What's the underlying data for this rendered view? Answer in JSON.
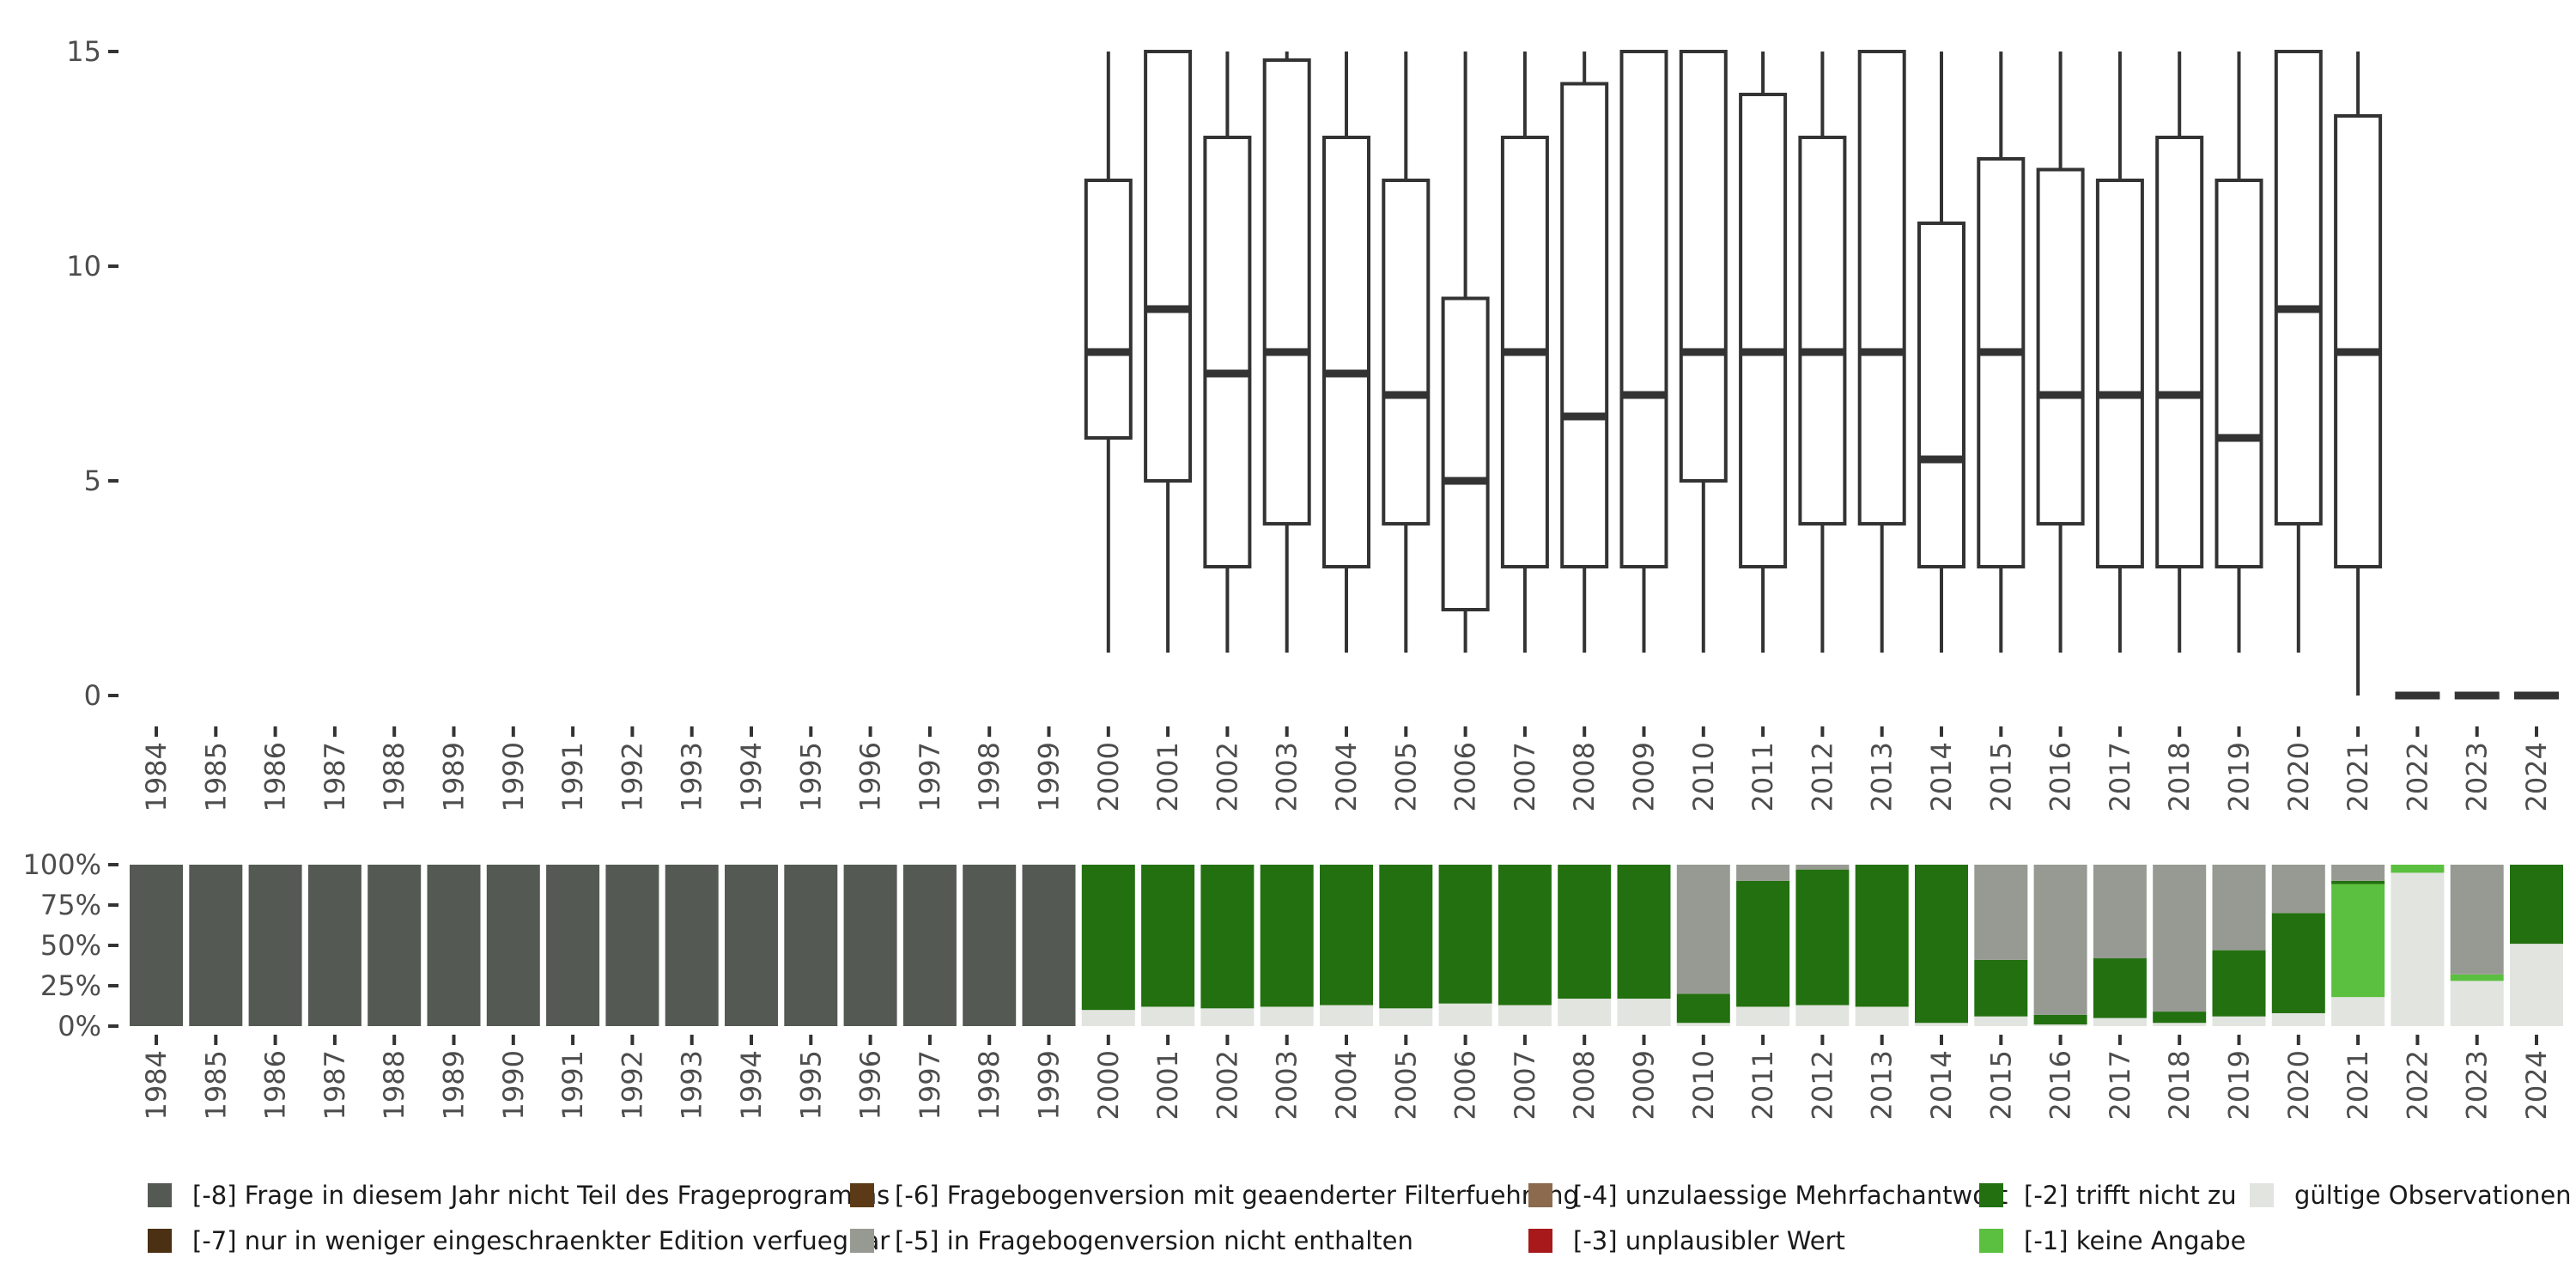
{
  "chart_data": [
    {
      "type": "boxplot",
      "title": "",
      "xlabel": "",
      "ylabel": "",
      "ylim": [
        0,
        15
      ],
      "yticks": [
        0,
        5,
        10,
        15
      ],
      "ytick_labels": [
        "0",
        "5",
        "10",
        "15"
      ],
      "categories": [
        "1984",
        "1985",
        "1986",
        "1987",
        "1988",
        "1989",
        "1990",
        "1991",
        "1992",
        "1993",
        "1994",
        "1995",
        "1996",
        "1997",
        "1998",
        "1999",
        "2000",
        "2001",
        "2002",
        "2003",
        "2004",
        "2005",
        "2006",
        "2007",
        "2008",
        "2009",
        "2010",
        "2011",
        "2012",
        "2013",
        "2014",
        "2015",
        "2016",
        "2017",
        "2018",
        "2019",
        "2020",
        "2021",
        "2022",
        "2023",
        "2024"
      ],
      "boxes": [
        {
          "year": "2000",
          "whisker_low": 1,
          "q1": 6,
          "median": 8,
          "q3": 12,
          "whisker_high": 15
        },
        {
          "year": "2001",
          "whisker_low": 1,
          "q1": 5,
          "median": 9,
          "q3": 15,
          "whisker_high": 15
        },
        {
          "year": "2002",
          "whisker_low": 1,
          "q1": 3,
          "median": 7.5,
          "q3": 13,
          "whisker_high": 15
        },
        {
          "year": "2003",
          "whisker_low": 1,
          "q1": 4,
          "median": 8,
          "q3": 14.8,
          "whisker_high": 15
        },
        {
          "year": "2004",
          "whisker_low": 1,
          "q1": 3,
          "median": 7.5,
          "q3": 13,
          "whisker_high": 15
        },
        {
          "year": "2005",
          "whisker_low": 1,
          "q1": 4,
          "median": 7,
          "q3": 12,
          "whisker_high": 15
        },
        {
          "year": "2006",
          "whisker_low": 1,
          "q1": 2,
          "median": 5,
          "q3": 9.25,
          "whisker_high": 15
        },
        {
          "year": "2007",
          "whisker_low": 1,
          "q1": 3,
          "median": 8,
          "q3": 13,
          "whisker_high": 15
        },
        {
          "year": "2008",
          "whisker_low": 1,
          "q1": 3,
          "median": 6.5,
          "q3": 14.25,
          "whisker_high": 15
        },
        {
          "year": "2009",
          "whisker_low": 1,
          "q1": 3,
          "median": 7,
          "q3": 15,
          "whisker_high": 15
        },
        {
          "year": "2010",
          "whisker_low": 1,
          "q1": 5,
          "median": 8,
          "q3": 15,
          "whisker_high": 15
        },
        {
          "year": "2011",
          "whisker_low": 1,
          "q1": 3,
          "median": 8,
          "q3": 14,
          "whisker_high": 15
        },
        {
          "year": "2012",
          "whisker_low": 1,
          "q1": 4,
          "median": 8,
          "q3": 13,
          "whisker_high": 15
        },
        {
          "year": "2013",
          "whisker_low": 1,
          "q1": 4,
          "median": 8,
          "q3": 15,
          "whisker_high": 15
        },
        {
          "year": "2014",
          "whisker_low": 1,
          "q1": 3,
          "median": 5.5,
          "q3": 11,
          "whisker_high": 15
        },
        {
          "year": "2015",
          "whisker_low": 1,
          "q1": 3,
          "median": 8,
          "q3": 12.5,
          "whisker_high": 15
        },
        {
          "year": "2016",
          "whisker_low": 1,
          "q1": 4,
          "median": 7,
          "q3": 12.25,
          "whisker_high": 15
        },
        {
          "year": "2017",
          "whisker_low": 1,
          "q1": 3,
          "median": 7,
          "q3": 12,
          "whisker_high": 15
        },
        {
          "year": "2018",
          "whisker_low": 1,
          "q1": 3,
          "median": 7,
          "q3": 13,
          "whisker_high": 15
        },
        {
          "year": "2019",
          "whisker_low": 1,
          "q1": 3,
          "median": 6,
          "q3": 12,
          "whisker_high": 15
        },
        {
          "year": "2020",
          "whisker_low": 1,
          "q1": 4,
          "median": 9,
          "q3": 15,
          "whisker_high": 15
        },
        {
          "year": "2021",
          "whisker_low": 0,
          "q1": 3,
          "median": 8,
          "q3": 13.5,
          "whisker_high": 15
        },
        {
          "year": "2022",
          "whisker_low": 0,
          "q1": 0,
          "median": 0,
          "q3": 0,
          "whisker_high": 0
        },
        {
          "year": "2023",
          "whisker_low": 0,
          "q1": 0,
          "median": 0,
          "q3": 0,
          "whisker_high": 0
        },
        {
          "year": "2024",
          "whisker_low": 0,
          "q1": 0,
          "median": 0,
          "q3": 0,
          "whisker_high": 0
        }
      ]
    },
    {
      "type": "bar",
      "stacked": true,
      "normalized": true,
      "ylim": [
        0,
        1
      ],
      "yticks": [
        0,
        0.25,
        0.5,
        0.75,
        1
      ],
      "ytick_labels": [
        "0%",
        "25%",
        "50%",
        "75%",
        "100%"
      ],
      "categories": [
        "1984",
        "1985",
        "1986",
        "1987",
        "1988",
        "1989",
        "1990",
        "1991",
        "1992",
        "1993",
        "1994",
        "1995",
        "1996",
        "1997",
        "1998",
        "1999",
        "2000",
        "2001",
        "2002",
        "2003",
        "2004",
        "2005",
        "2006",
        "2007",
        "2008",
        "2009",
        "2010",
        "2011",
        "2012",
        "2013",
        "2014",
        "2015",
        "2016",
        "2017",
        "2018",
        "2019",
        "2020",
        "2021",
        "2022",
        "2023",
        "2024"
      ],
      "stack_order": [
        "valid",
        "m1",
        "m2",
        "m3",
        "m4",
        "m5",
        "m6",
        "m7",
        "m8"
      ],
      "series": [
        {
          "key": "m8",
          "name": "[-8] Frage in diesem Jahr nicht Teil des Frageprogramms",
          "color": "#545a53",
          "values": [
            1,
            1,
            1,
            1,
            1,
            1,
            1,
            1,
            1,
            1,
            1,
            1,
            1,
            1,
            1,
            1,
            0,
            0,
            0,
            0,
            0,
            0,
            0,
            0,
            0,
            0,
            0,
            0,
            0,
            0,
            0,
            0,
            0,
            0,
            0,
            0,
            0,
            0,
            0,
            0,
            0
          ]
        },
        {
          "key": "m7",
          "name": "[-7] nur in weniger eingeschraenkter Edition verfuegbar",
          "color": "#4b3014",
          "values": [
            0,
            0,
            0,
            0,
            0,
            0,
            0,
            0,
            0,
            0,
            0,
            0,
            0,
            0,
            0,
            0,
            0,
            0,
            0,
            0,
            0,
            0,
            0,
            0,
            0,
            0,
            0,
            0,
            0,
            0,
            0,
            0,
            0,
            0,
            0,
            0,
            0,
            0,
            0,
            0,
            0
          ]
        },
        {
          "key": "m6",
          "name": "[-6] Fragebogenversion mit geaenderter Filterfuehrung",
          "color": "#5d3a17",
          "values": [
            0,
            0,
            0,
            0,
            0,
            0,
            0,
            0,
            0,
            0,
            0,
            0,
            0,
            0,
            0,
            0,
            0,
            0,
            0,
            0,
            0,
            0,
            0,
            0,
            0,
            0,
            0,
            0,
            0,
            0,
            0,
            0,
            0,
            0,
            0,
            0,
            0,
            0,
            0,
            0,
            0
          ]
        },
        {
          "key": "m5",
          "name": "[-5] in Fragebogenversion nicht enthalten",
          "color": "#979a92",
          "values": [
            0,
            0,
            0,
            0,
            0,
            0,
            0,
            0,
            0,
            0,
            0,
            0,
            0,
            0,
            0,
            0,
            0,
            0,
            0,
            0,
            0,
            0,
            0,
            0,
            0,
            0,
            0.8,
            0.1,
            0.03,
            0,
            0,
            0.59,
            0.93,
            0.58,
            0.91,
            0.53,
            0.3,
            0.1,
            0,
            0.68,
            0
          ]
        },
        {
          "key": "m4",
          "name": "[-4] unzulaessige Mehrfachantwort",
          "color": "#8b6a4e",
          "values": [
            0,
            0,
            0,
            0,
            0,
            0,
            0,
            0,
            0,
            0,
            0,
            0,
            0,
            0,
            0,
            0,
            0,
            0,
            0,
            0,
            0,
            0,
            0,
            0,
            0,
            0,
            0,
            0,
            0,
            0,
            0,
            0,
            0,
            0,
            0,
            0,
            0,
            0,
            0,
            0,
            0
          ]
        },
        {
          "key": "m3",
          "name": "[-3] unplausibler Wert",
          "color": "#a8191c",
          "values": [
            0,
            0,
            0,
            0,
            0,
            0,
            0,
            0,
            0,
            0,
            0,
            0,
            0,
            0,
            0,
            0,
            0,
            0,
            0,
            0,
            0,
            0,
            0,
            0,
            0,
            0,
            0,
            0,
            0,
            0,
            0,
            0,
            0,
            0,
            0,
            0,
            0,
            0,
            0,
            0,
            0
          ]
        },
        {
          "key": "m2",
          "name": "[-2] trifft nicht zu",
          "color": "#22700f",
          "values": [
            0,
            0,
            0,
            0,
            0,
            0,
            0,
            0,
            0,
            0,
            0,
            0,
            0,
            0,
            0,
            0,
            0.9,
            0.88,
            0.89,
            0.88,
            0.87,
            0.89,
            0.86,
            0.87,
            0.83,
            0.83,
            0.18,
            0.78,
            0.84,
            0.88,
            0.98,
            0.35,
            0.06,
            0.37,
            0.07,
            0.41,
            0.62,
            0.02,
            0,
            0,
            0.49
          ]
        },
        {
          "key": "m1",
          "name": "[-1] keine Angabe",
          "color": "#5bbf3f",
          "values": [
            0,
            0,
            0,
            0,
            0,
            0,
            0,
            0,
            0,
            0,
            0,
            0,
            0,
            0,
            0,
            0,
            0,
            0,
            0,
            0,
            0,
            0,
            0,
            0,
            0,
            0,
            0,
            0,
            0,
            0,
            0,
            0,
            0,
            0,
            0,
            0,
            0,
            0.7,
            0.05,
            0.04,
            0
          ]
        },
        {
          "key": "valid",
          "name": "gültige Observationen",
          "color": "#e1e4df",
          "values": [
            0,
            0,
            0,
            0,
            0,
            0,
            0,
            0,
            0,
            0,
            0,
            0,
            0,
            0,
            0,
            0,
            0.1,
            0.12,
            0.11,
            0.12,
            0.13,
            0.11,
            0.14,
            0.13,
            0.17,
            0.17,
            0.02,
            0.12,
            0.13,
            0.12,
            0.02,
            0.06,
            0.01,
            0.05,
            0.02,
            0.06,
            0.08,
            0.18,
            0.95,
            0.28,
            0.51
          ]
        }
      ]
    }
  ],
  "legend": {
    "placement": "bottom",
    "items": [
      {
        "label": "[-8] Frage in diesem Jahr nicht Teil des Frageprogramms",
        "color": "#545a53"
      },
      {
        "label": "[-7] nur in weniger eingeschraenkter Edition verfuegbar",
        "color": "#4b3014"
      },
      {
        "label": "[-6] Fragebogenversion mit geaenderter Filterfuehrung",
        "color": "#5d3a17"
      },
      {
        "label": "[-5] in Fragebogenversion nicht enthalten",
        "color": "#979a92"
      },
      {
        "label": "[-4] unzulaessige Mehrfachantwort",
        "color": "#8b6a4e"
      },
      {
        "label": "[-3] unplausibler Wert",
        "color": "#a8191c"
      },
      {
        "label": "[-2] trifft nicht zu",
        "color": "#22700f"
      },
      {
        "label": "[-1] keine Angabe",
        "color": "#5bbf3f"
      },
      {
        "label": "gültige Observationen",
        "color": "#e1e4df"
      }
    ]
  }
}
